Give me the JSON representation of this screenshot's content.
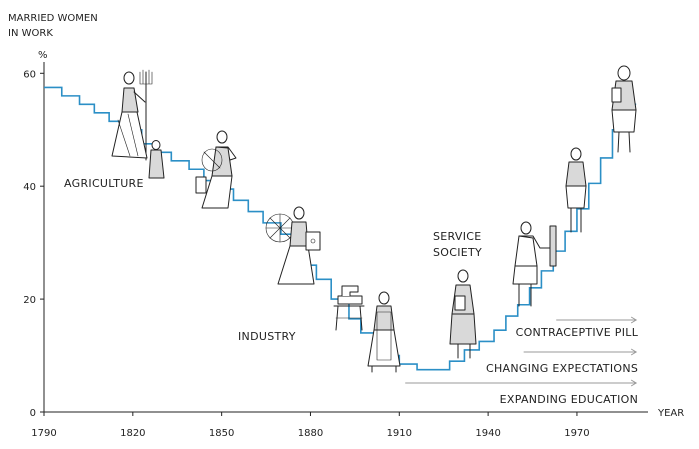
{
  "chart_data": {
    "type": "line",
    "title": "",
    "ylabel": "MARRIED WOMEN IN WORK",
    "ylabel_lines": [
      "MARRIED WOMEN",
      "IN WORK"
    ],
    "yunit": "%",
    "xlabel": "YEAR",
    "xlim": [
      1790,
      1994
    ],
    "ylim": [
      0,
      62
    ],
    "x_ticks": [
      1790,
      1820,
      1850,
      1880,
      1910,
      1940,
      1970
    ],
    "y_ticks": [
      0,
      20,
      40,
      60
    ],
    "step": true,
    "line_color": "#2b8fc6",
    "series": [
      {
        "name": "Married women in work",
        "points": [
          [
            1790,
            57.5
          ],
          [
            1796,
            56
          ],
          [
            1802,
            54.5
          ],
          [
            1807,
            53
          ],
          [
            1812,
            51.5
          ],
          [
            1818,
            50
          ],
          [
            1823,
            47.5
          ],
          [
            1828,
            46
          ],
          [
            1833,
            44.5
          ],
          [
            1839,
            43
          ],
          [
            1844,
            41
          ],
          [
            1849,
            39.5
          ],
          [
            1854,
            37.5
          ],
          [
            1859,
            35.5
          ],
          [
            1864,
            33.5
          ],
          [
            1870,
            31.5
          ],
          [
            1874,
            29
          ],
          [
            1877,
            26
          ],
          [
            1882,
            23.5
          ],
          [
            1887,
            20
          ],
          [
            1893,
            16.5
          ],
          [
            1897,
            14
          ],
          [
            1902,
            12
          ],
          [
            1906,
            10
          ],
          [
            1910,
            8.5
          ],
          [
            1916,
            7.5
          ],
          [
            1922,
            7.5
          ],
          [
            1927,
            9
          ],
          [
            1932,
            11
          ],
          [
            1937,
            12.5
          ],
          [
            1942,
            14.5
          ],
          [
            1946,
            17
          ],
          [
            1950,
            19
          ],
          [
            1954,
            22
          ],
          [
            1958,
            25
          ],
          [
            1962,
            28.5
          ],
          [
            1966,
            32
          ],
          [
            1970,
            36
          ],
          [
            1974,
            40.5
          ],
          [
            1978,
            45
          ],
          [
            1982,
            50
          ],
          [
            1987,
            54.5
          ],
          [
            1990,
            54.5
          ]
        ]
      }
    ],
    "annotations": {
      "eras": [
        {
          "id": "agriculture",
          "lines": [
            "AGRICULTURE"
          ]
        },
        {
          "id": "industry",
          "lines": [
            "INDUSTRY"
          ]
        },
        {
          "id": "service",
          "lines": [
            "SERVICE",
            "SOCIETY"
          ]
        }
      ],
      "trends": [
        {
          "id": "contraceptive",
          "label": "CONTRACEPTIVE PILL",
          "from_year": 1963,
          "to_year": 1990
        },
        {
          "id": "expectations",
          "label": "CHANGING EXPECTATIONS",
          "from_year": 1952,
          "to_year": 1990
        },
        {
          "id": "education",
          "label": "EXPANDING EDUCATION",
          "from_year": 1912,
          "to_year": 1990
        }
      ],
      "arrow_color": "#999999"
    }
  }
}
